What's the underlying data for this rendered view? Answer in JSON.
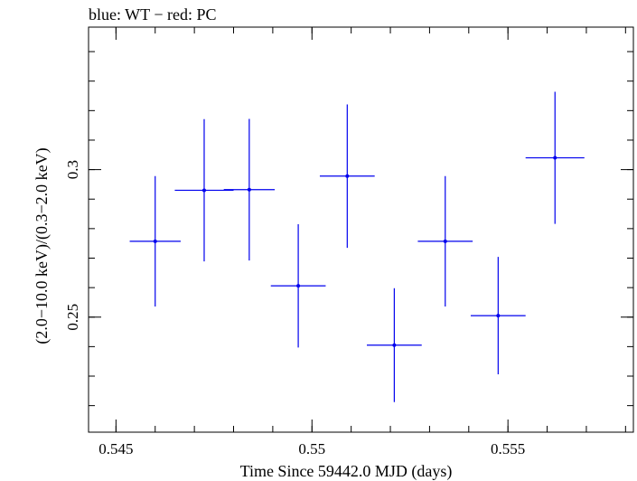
{
  "chart_data": {
    "type": "scatter",
    "title": "blue: WT − red: PC",
    "xlabel": "Time Since 59442.0 MJD (days)",
    "ylabel": "(2.0−10.0 keV)/(0.3−2.0 keV)",
    "xlim": [
      0.5443,
      0.5582
    ],
    "ylim": [
      0.211,
      0.3483
    ],
    "x_ticks": [
      0.545,
      0.55,
      0.555
    ],
    "x_tick_labels": [
      "0.545",
      "0.55",
      "0.555"
    ],
    "y_ticks": [
      0.25,
      0.3
    ],
    "y_tick_labels": [
      "0.25",
      "0.3"
    ],
    "x_minor_step": 0.001,
    "y_minor_step": 0.01,
    "grid": false,
    "series": [
      {
        "color": "#0000ee",
        "points": [
          {
            "x": 0.546,
            "y": 0.2757,
            "xerr": 0.00065,
            "yerr_low": 0.0221,
            "yerr_high": 0.0221
          },
          {
            "x": 0.54725,
            "y": 0.293,
            "xerr": 0.00075,
            "yerr_low": 0.0241,
            "yerr_high": 0.0241
          },
          {
            "x": 0.5484,
            "y": 0.2932,
            "xerr": 0.00065,
            "yerr_low": 0.024,
            "yerr_high": 0.024
          },
          {
            "x": 0.54965,
            "y": 0.2606,
            "xerr": 0.0007,
            "yerr_low": 0.0209,
            "yerr_high": 0.0209
          },
          {
            "x": 0.5509,
            "y": 0.2978,
            "xerr": 0.0007,
            "yerr_low": 0.0243,
            "yerr_high": 0.0243
          },
          {
            "x": 0.5521,
            "y": 0.2405,
            "xerr": 0.0007,
            "yerr_low": 0.0193,
            "yerr_high": 0.0193
          },
          {
            "x": 0.5534,
            "y": 0.2757,
            "xerr": 0.0007,
            "yerr_low": 0.0221,
            "yerr_high": 0.0221
          },
          {
            "x": 0.55475,
            "y": 0.2505,
            "xerr": 0.0007,
            "yerr_low": 0.0199,
            "yerr_high": 0.0199
          },
          {
            "x": 0.5562,
            "y": 0.304,
            "xerr": 0.00075,
            "yerr_low": 0.0224,
            "yerr_high": 0.0224
          }
        ]
      }
    ]
  }
}
